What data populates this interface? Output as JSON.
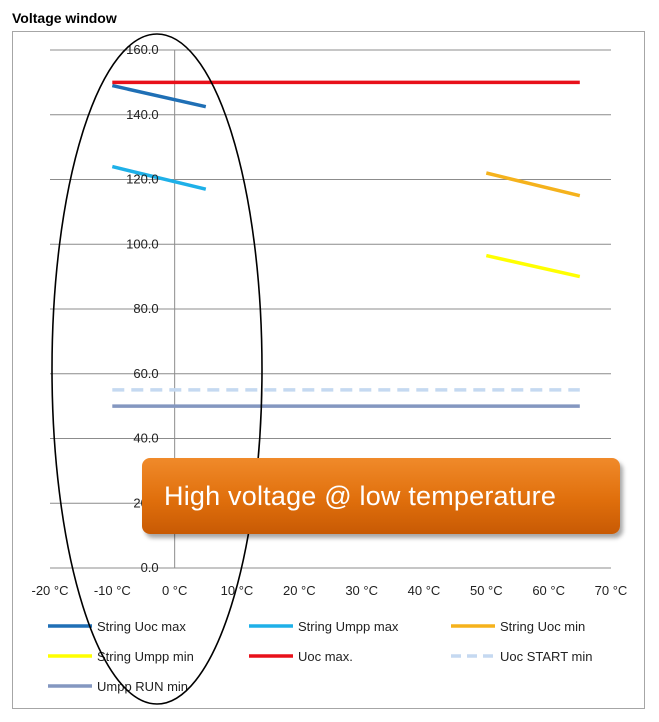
{
  "chart_data": {
    "type": "line",
    "title": "Voltage window",
    "xlabel": "",
    "ylabel": "",
    "xlim": [
      -20,
      70
    ],
    "ylim": [
      0,
      160
    ],
    "x_ticks": [
      -20,
      -10,
      0,
      10,
      20,
      30,
      40,
      50,
      60,
      70
    ],
    "x_tick_labels": [
      "-20 °C",
      "-10 °C",
      "0 °C",
      "10 °C",
      "20 °C",
      "30 °C",
      "40 °C",
      "50 °C",
      "60 °C",
      "70 °C"
    ],
    "y_ticks": [
      0,
      20,
      40,
      60,
      80,
      100,
      120,
      140,
      160
    ],
    "y_tick_labels": [
      "0.0",
      "20.0",
      "40.0",
      "60.0",
      "80.0",
      "100.0",
      "120.0",
      "140.0",
      "160.0"
    ],
    "grid": "horizontal",
    "legend_position": "bottom",
    "series": [
      {
        "name": "String Uoc max",
        "color": "#1f6fb5",
        "dash": false,
        "points": [
          [
            -10,
            149
          ],
          [
            5,
            142.5
          ]
        ]
      },
      {
        "name": "String Umpp max",
        "color": "#1eb0e8",
        "dash": false,
        "points": [
          [
            -10,
            124
          ],
          [
            5,
            117
          ]
        ]
      },
      {
        "name": "String Uoc min",
        "color": "#f5b21c",
        "dash": false,
        "points": [
          [
            50,
            122
          ],
          [
            65,
            115
          ]
        ]
      },
      {
        "name": "String Umpp min",
        "color": "#ffff00",
        "dash": false,
        "points": [
          [
            50,
            96.5
          ],
          [
            65,
            90
          ]
        ]
      },
      {
        "name": "Uoc max.",
        "color": "#e8101a",
        "dash": false,
        "points": [
          [
            -10,
            150
          ],
          [
            65,
            150
          ]
        ]
      },
      {
        "name": "Uoc START min",
        "color": "#c5d9f1",
        "dash": true,
        "points": [
          [
            -10,
            55
          ],
          [
            65,
            55
          ]
        ]
      },
      {
        "name": "Umpp RUN min",
        "color": "#8497c0",
        "dash": false,
        "points": [
          [
            -10,
            50
          ],
          [
            65,
            50
          ]
        ]
      }
    ],
    "annotations": [
      {
        "type": "callout",
        "text": "High voltage @ low temperature",
        "color": "#e06f0c"
      },
      {
        "type": "ellipse-highlight",
        "color": "#000000"
      }
    ]
  }
}
